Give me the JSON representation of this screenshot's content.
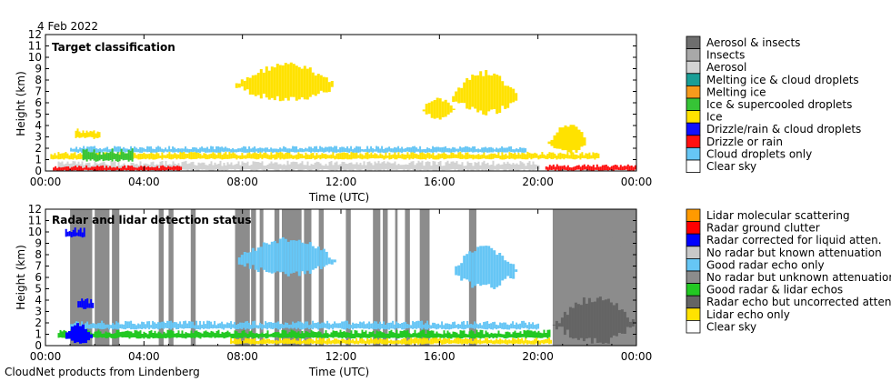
{
  "date": "4 Feb 2022",
  "footer": "CloudNet products from Lindenberg",
  "colors": {
    "aerosol_insects": "#6e6e6e",
    "insects": "#a8a8a8",
    "aerosol": "#d3d3d3",
    "melting_ice_droplets": "#1a9e96",
    "melting_ice": "#f59a1c",
    "ice_supercooled": "#36c436",
    "ice": "#ffe200",
    "drizzle_droplets": "#1010ff",
    "drizzle_rain": "#ff1010",
    "droplets": "#66c6f5",
    "clear": "#ffffff",
    "lidar_molecular": "#ff9a00",
    "radar_clutter": "#ff0000",
    "radar_corrected": "#0000ff",
    "no_radar_known": "#c8c8c8",
    "good_radar": "#66c6f5",
    "no_radar_unknown": "#8c8c8c",
    "good_both": "#22c822",
    "radar_uncorrected": "#646464",
    "lidar_only": "#ffe200"
  },
  "chart_data": [
    {
      "type": "heatmap",
      "title": "Target classification",
      "xlabel": "Time (UTC)",
      "ylabel": "Height (km)",
      "xticks": [
        "00:00",
        "04:00",
        "08:00",
        "12:00",
        "16:00",
        "20:00",
        "00:00"
      ],
      "yticks": [
        "0",
        "1",
        "2",
        "3",
        "4",
        "5",
        "6",
        "7",
        "8",
        "9",
        "10",
        "11",
        "12"
      ],
      "xlim": [
        0,
        24
      ],
      "ylim": [
        0,
        12
      ],
      "legend": [
        {
          "label": "Aerosol & insects",
          "color": "#6e6e6e"
        },
        {
          "label": "Insects",
          "color": "#a8a8a8"
        },
        {
          "label": "Aerosol",
          "color": "#d3d3d3"
        },
        {
          "label": "Melting ice & cloud droplets",
          "color": "#1a9e96"
        },
        {
          "label": "Melting ice",
          "color": "#f59a1c"
        },
        {
          "label": "Ice & supercooled droplets",
          "color": "#36c436"
        },
        {
          "label": "Ice",
          "color": "#ffe200"
        },
        {
          "label": "Drizzle/rain & cloud droplets",
          "color": "#1010ff"
        },
        {
          "label": "Drizzle or rain",
          "color": "#ff1010"
        },
        {
          "label": "Cloud droplets only",
          "color": "#66c6f5"
        },
        {
          "label": "Clear sky",
          "color": "#ffffff"
        }
      ],
      "regions": [
        {
          "class": "ice",
          "x": [
            7.6,
            11.9
          ],
          "y": [
            6.0,
            9.6
          ]
        },
        {
          "class": "ice",
          "x": [
            16.4,
            19.2
          ],
          "y": [
            4.8,
            8.9
          ]
        },
        {
          "class": "ice",
          "x": [
            20.4,
            22.0
          ],
          "y": [
            1.4,
            4.2
          ]
        },
        {
          "class": "ice",
          "x": [
            1.2,
            2.2
          ],
          "y": [
            2.8,
            3.8
          ]
        },
        {
          "class": "ice",
          "x": [
            15.2,
            16.6
          ],
          "y": [
            4.5,
            6.5
          ]
        },
        {
          "class": "ice",
          "x": [
            0.2,
            22.5
          ],
          "y": [
            1.0,
            1.7
          ]
        },
        {
          "class": "droplets",
          "x": [
            1.0,
            19.5
          ],
          "y": [
            1.6,
            2.2
          ]
        },
        {
          "class": "aerosol",
          "x": [
            0.5,
            20.0
          ],
          "y": [
            0.0,
            0.9
          ]
        },
        {
          "class": "drizzle_rain",
          "x": [
            0.3,
            5.5
          ],
          "y": [
            0.0,
            0.5
          ]
        },
        {
          "class": "drizzle_rain",
          "x": [
            20.3,
            24.0
          ],
          "y": [
            0.0,
            0.6
          ]
        },
        {
          "class": "ice_supercooled",
          "x": [
            1.5,
            3.5
          ],
          "y": [
            0.8,
            2.0
          ]
        }
      ]
    },
    {
      "type": "heatmap",
      "title": "Radar and lidar detection status",
      "xlabel": "Time (UTC)",
      "ylabel": "Height (km)",
      "xticks": [
        "00:00",
        "04:00",
        "08:00",
        "12:00",
        "16:00",
        "20:00",
        "00:00"
      ],
      "yticks": [
        "0",
        "1",
        "2",
        "3",
        "4",
        "5",
        "6",
        "7",
        "8",
        "9",
        "10",
        "11",
        "12"
      ],
      "xlim": [
        0,
        24
      ],
      "ylim": [
        0,
        12
      ],
      "legend": [
        {
          "label": "Lidar molecular scattering",
          "color": "#ff9a00"
        },
        {
          "label": "Radar ground clutter",
          "color": "#ff0000"
        },
        {
          "label": "Radar corrected for liquid atten.",
          "color": "#0000ff"
        },
        {
          "label": "No radar but known attenuation",
          "color": "#c8c8c8"
        },
        {
          "label": "Good radar echo only",
          "color": "#66c6f5"
        },
        {
          "label": "No radar but unknown attenuation",
          "color": "#8c8c8c"
        },
        {
          "label": "Good radar & lidar echos",
          "color": "#22c822"
        },
        {
          "label": "Radar echo but uncorrected atten.",
          "color": "#646464"
        },
        {
          "label": "Lidar echo only",
          "color": "#ffe200"
        },
        {
          "label": "Clear sky",
          "color": "#ffffff"
        }
      ],
      "regions": [
        {
          "class": "no_radar_unknown",
          "x": [
            20.6,
            24.0
          ],
          "y": [
            0.0,
            12.0
          ]
        },
        {
          "class": "good_radar",
          "x": [
            7.6,
            11.9
          ],
          "y": [
            6.0,
            9.6
          ]
        },
        {
          "class": "good_radar",
          "x": [
            16.4,
            19.2
          ],
          "y": [
            4.8,
            8.9
          ]
        },
        {
          "class": "radar_uncorrected",
          "x": [
            20.6,
            24.0
          ],
          "y": [
            0.0,
            4.5
          ]
        },
        {
          "class": "good_both",
          "x": [
            0.5,
            20.5
          ],
          "y": [
            0.6,
            1.4
          ]
        },
        {
          "class": "good_radar",
          "x": [
            1.0,
            20.0
          ],
          "y": [
            1.4,
            2.2
          ]
        },
        {
          "class": "lidar_only",
          "x": [
            7.5,
            20.5
          ],
          "y": [
            0.1,
            0.7
          ]
        },
        {
          "class": "radar_corrected",
          "x": [
            0.7,
            1.9
          ],
          "y": [
            0.0,
            2.0
          ]
        },
        {
          "class": "radar_corrected",
          "x": [
            1.3,
            1.9
          ],
          "y": [
            3.2,
            4.2
          ]
        },
        {
          "class": "radar_corrected",
          "x": [
            0.8,
            1.6
          ],
          "y": [
            9.5,
            10.4
          ]
        }
      ],
      "no_radar_columns": [
        [
          1.0,
          1.9
        ],
        [
          2.0,
          2.6
        ],
        [
          2.7,
          3.0
        ],
        [
          4.6,
          4.8
        ],
        [
          5.0,
          5.2
        ],
        [
          5.9,
          6.1
        ],
        [
          7.7,
          8.3
        ],
        [
          8.35,
          8.55
        ],
        [
          8.7,
          8.85
        ],
        [
          9.3,
          9.5
        ],
        [
          9.6,
          10.4
        ],
        [
          10.5,
          10.8
        ],
        [
          11.1,
          11.3
        ],
        [
          12.2,
          12.4
        ],
        [
          13.3,
          13.6
        ],
        [
          13.7,
          13.9
        ],
        [
          14.2,
          14.3
        ],
        [
          14.6,
          14.8
        ],
        [
          15.2,
          15.6
        ],
        [
          17.2,
          17.5
        ],
        [
          20.6,
          24.0
        ]
      ]
    }
  ]
}
